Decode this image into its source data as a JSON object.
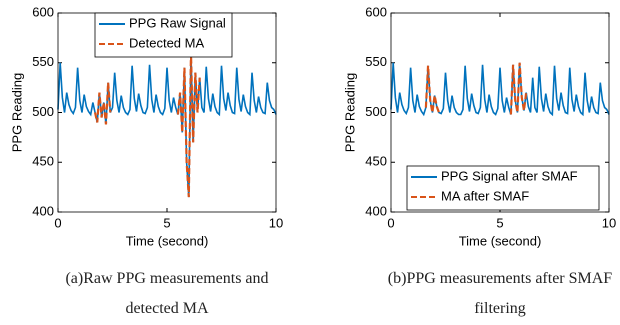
{
  "chart_data": [
    {
      "type": "line",
      "caption": "(a)Raw PPG measurements and detected MA",
      "xlabel": "Time (second)",
      "ylabel": "PPG Reading",
      "xlim": [
        0,
        10
      ],
      "ylim": [
        400,
        600
      ],
      "xticks": [
        0,
        5,
        10
      ],
      "yticks": [
        400,
        450,
        500,
        550,
        600
      ],
      "legend": "upper left",
      "x": [
        0,
        0.1,
        0.2,
        0.3,
        0.4,
        0.5,
        0.6,
        0.7,
        0.8,
        0.9,
        1,
        1.1,
        1.2,
        1.3,
        1.4,
        1.5,
        1.6,
        1.7,
        1.8,
        1.9,
        2,
        2.1,
        2.2,
        2.3,
        2.4,
        2.5,
        2.6,
        2.7,
        2.8,
        2.9,
        3,
        3.1,
        3.2,
        3.3,
        3.4,
        3.5,
        3.6,
        3.7,
        3.8,
        3.9,
        4,
        4.1,
        4.2,
        4.3,
        4.4,
        4.5,
        4.6,
        4.7,
        4.8,
        4.9,
        5,
        5.1,
        5.2,
        5.3,
        5.4,
        5.5,
        5.6,
        5.7,
        5.8,
        5.9,
        6,
        6.1,
        6.2,
        6.3,
        6.4,
        6.5,
        6.6,
        6.7,
        6.8,
        6.9,
        7,
        7.1,
        7.2,
        7.3,
        7.4,
        7.5,
        7.6,
        7.7,
        7.8,
        7.9,
        8,
        8.1,
        8.2,
        8.3,
        8.4,
        8.5,
        8.6,
        8.7,
        8.8,
        8.9,
        9,
        9.1,
        9.2,
        9.3,
        9.4,
        9.5,
        9.6,
        9.7,
        9.8,
        9.9,
        10
      ],
      "series": [
        {
          "name": "PPG Raw Signal",
          "color": "#0072bd",
          "style": "solid",
          "values": [
            503,
            550,
            515,
            500,
            520,
            508,
            502,
            499,
            505,
            545,
            512,
            500,
            518,
            506,
            501,
            498,
            510,
            500,
            490,
            520,
            495,
            510,
            488,
            530,
            500,
            505,
            540,
            512,
            500,
            517,
            505,
            500,
            498,
            503,
            547,
            514,
            501,
            519,
            507,
            500,
            499,
            505,
            548,
            513,
            500,
            518,
            506,
            500,
            498,
            504,
            545,
            512,
            500,
            515,
            505,
            498,
            520,
            480,
            545,
            450,
            415,
            560,
            470,
            540,
            500,
            535,
            505,
            500,
            546,
            514,
            501,
            519,
            506,
            500,
            498,
            547,
            514,
            502,
            520,
            507,
            500,
            499,
            545,
            513,
            501,
            518,
            506,
            500,
            498,
            540,
            512,
            500,
            516,
            505,
            500,
            499,
            530,
            512,
            505,
            503,
            498
          ]
        },
        {
          "name": "Detected MA",
          "color": "#d95319",
          "style": "dashed",
          "values": [
            null,
            null,
            null,
            null,
            null,
            null,
            null,
            null,
            null,
            null,
            null,
            null,
            null,
            null,
            null,
            null,
            null,
            500,
            490,
            520,
            495,
            510,
            488,
            530,
            500,
            null,
            null,
            null,
            null,
            null,
            null,
            null,
            null,
            null,
            null,
            null,
            null,
            null,
            null,
            null,
            null,
            null,
            null,
            null,
            null,
            null,
            null,
            null,
            null,
            null,
            null,
            null,
            null,
            null,
            null,
            498,
            520,
            480,
            545,
            450,
            415,
            560,
            470,
            540,
            500,
            535,
            null,
            null,
            null,
            null,
            null,
            null,
            null,
            null,
            null,
            null,
            null,
            null,
            null,
            null,
            null,
            null,
            null,
            null,
            null,
            null,
            null,
            null,
            null,
            null,
            null,
            null,
            null,
            null,
            null,
            null,
            null,
            null,
            null,
            null,
            null
          ]
        }
      ]
    },
    {
      "type": "line",
      "caption": "(b)PPG measurements after SMAF filtering",
      "xlabel": "Time (second)",
      "ylabel": "PPG Reading",
      "xlim": [
        0,
        10
      ],
      "ylim": [
        400,
        600
      ],
      "xticks": [
        0,
        5,
        10
      ],
      "yticks": [
        400,
        450,
        500,
        550,
        600
      ],
      "legend": "lower right",
      "x": [
        0,
        0.1,
        0.2,
        0.3,
        0.4,
        0.5,
        0.6,
        0.7,
        0.8,
        0.9,
        1,
        1.1,
        1.2,
        1.3,
        1.4,
        1.5,
        1.6,
        1.7,
        1.8,
        1.9,
        2,
        2.1,
        2.2,
        2.3,
        2.4,
        2.5,
        2.6,
        2.7,
        2.8,
        2.9,
        3,
        3.1,
        3.2,
        3.3,
        3.4,
        3.5,
        3.6,
        3.7,
        3.8,
        3.9,
        4,
        4.1,
        4.2,
        4.3,
        4.4,
        4.5,
        4.6,
        4.7,
        4.8,
        4.9,
        5,
        5.1,
        5.2,
        5.3,
        5.4,
        5.5,
        5.6,
        5.7,
        5.8,
        5.9,
        6,
        6.1,
        6.2,
        6.3,
        6.4,
        6.5,
        6.6,
        6.7,
        6.8,
        6.9,
        7,
        7.1,
        7.2,
        7.3,
        7.4,
        7.5,
        7.6,
        7.7,
        7.8,
        7.9,
        8,
        8.1,
        8.2,
        8.3,
        8.4,
        8.5,
        8.6,
        8.7,
        8.8,
        8.9,
        9,
        9.1,
        9.2,
        9.3,
        9.4,
        9.5,
        9.6,
        9.7,
        9.8,
        9.9,
        10
      ],
      "series": [
        {
          "name": "PPG Signal after SMAF",
          "color": "#0072bd",
          "style": "solid",
          "values": [
            503,
            550,
            515,
            500,
            520,
            508,
            502,
            499,
            505,
            545,
            512,
            500,
            518,
            506,
            501,
            498,
            505,
            547,
            512,
            500,
            517,
            506,
            500,
            499,
            504,
            540,
            512,
            500,
            517,
            505,
            500,
            498,
            498,
            503,
            547,
            514,
            501,
            519,
            507,
            500,
            499,
            505,
            548,
            513,
            500,
            518,
            506,
            500,
            498,
            504,
            545,
            512,
            500,
            515,
            505,
            498,
            548,
            512,
            500,
            550,
            515,
            502,
            520,
            506,
            500,
            535,
            505,
            500,
            546,
            514,
            501,
            519,
            506,
            500,
            498,
            547,
            514,
            502,
            520,
            507,
            500,
            499,
            545,
            513,
            501,
            518,
            506,
            500,
            498,
            540,
            512,
            500,
            516,
            505,
            500,
            499,
            530,
            512,
            505,
            503,
            498
          ]
        },
        {
          "name": "MA after SMAF",
          "color": "#d95319",
          "style": "dashed",
          "values": [
            null,
            null,
            null,
            null,
            null,
            null,
            null,
            null,
            null,
            null,
            null,
            null,
            null,
            null,
            null,
            null,
            505,
            547,
            512,
            500,
            517,
            506,
            500,
            499,
            null,
            null,
            null,
            null,
            null,
            null,
            null,
            null,
            null,
            null,
            null,
            null,
            null,
            null,
            null,
            null,
            null,
            null,
            null,
            null,
            null,
            null,
            null,
            null,
            null,
            null,
            null,
            null,
            null,
            null,
            null,
            498,
            548,
            512,
            500,
            550,
            515,
            502,
            520,
            null,
            null,
            null,
            null,
            null,
            null,
            null,
            null,
            null,
            null,
            null,
            null,
            null,
            null,
            null,
            null,
            null,
            null,
            null,
            null,
            null,
            null,
            null,
            null,
            null,
            null,
            null,
            null,
            null,
            null,
            null,
            null,
            null,
            null,
            null,
            null,
            null,
            null
          ]
        }
      ]
    }
  ]
}
